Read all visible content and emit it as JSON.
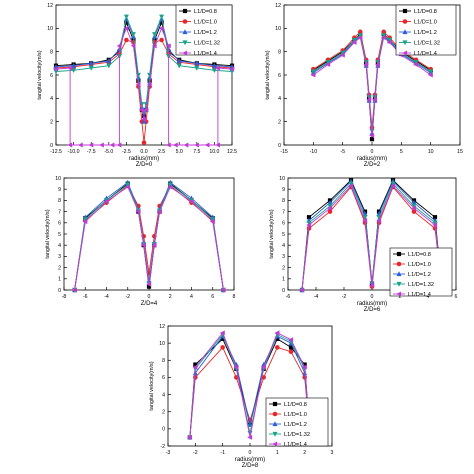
{
  "figure": {
    "legend_labels": [
      "L1/D=0.8",
      "L1/D=1.0",
      "L1/D=1.2",
      "L1/D=1.32",
      "L1/D=1.4"
    ],
    "series_colors": [
      "#000000",
      "#e8262a",
      "#2b5fd9",
      "#19a38a",
      "#c23ad6"
    ],
    "series_markers": [
      "square",
      "circle",
      "triangle-up",
      "triangle-down",
      "triangle-left"
    ]
  },
  "chart_data": [
    {
      "type": "line",
      "title": "Z/D=0",
      "xlabel": "radius(mm)",
      "ylabel": "tangital velocity(m/s)",
      "xlim": [
        -12.5,
        12.5
      ],
      "ylim": [
        0,
        12
      ],
      "xticks": [
        "-12.5",
        "-10.0",
        "-7.5",
        "-5.0",
        "-2.5",
        "0.0",
        "2.5",
        "5.0",
        "7.5",
        "10.0",
        "12.5"
      ],
      "yticks": [
        "0",
        "2",
        "4",
        "6",
        "8",
        "10",
        "12"
      ],
      "legend_position": "top-right",
      "series": [
        {
          "name": "L1/D=0.8",
          "x": [
            -12.5,
            -10,
            -7.5,
            -5,
            -3.5,
            -2.5,
            -1.5,
            -0.8,
            -0.3,
            0,
            0.3,
            0.8,
            1.5,
            2.5,
            3.5,
            5,
            7.5,
            10,
            12.5
          ],
          "y": [
            6.8,
            6.9,
            7.0,
            7.3,
            8.0,
            10.5,
            9.0,
            5.5,
            3.0,
            2.5,
            3.0,
            5.5,
            9.0,
            10.5,
            8.0,
            7.3,
            7.0,
            6.9,
            6.8
          ]
        },
        {
          "name": "L1/D=1.0",
          "x": [
            -12.5,
            -10,
            -7.5,
            -5,
            -3.5,
            -2.5,
            -1.5,
            -0.8,
            -0.3,
            0,
            0.3,
            0.8,
            1.5,
            2.5,
            3.5,
            5,
            7.5,
            10,
            12.5
          ],
          "y": [
            6.6,
            6.7,
            6.9,
            7.1,
            7.8,
            9.0,
            8.8,
            5.0,
            2.0,
            0.2,
            2.0,
            5.0,
            8.8,
            9.0,
            7.8,
            7.1,
            6.9,
            6.7,
            6.6
          ]
        },
        {
          "name": "L1/D=1.2",
          "x": [
            -12.5,
            -10,
            -7.5,
            -5,
            -3.5,
            -2.5,
            -1.5,
            -0.8,
            -0.3,
            0,
            0.3,
            0.8,
            1.5,
            2.5,
            3.5,
            5,
            7.5,
            10,
            12.5
          ],
          "y": [
            6.7,
            6.8,
            7.0,
            7.2,
            8.2,
            10.8,
            9.3,
            5.8,
            3.2,
            2.0,
            3.2,
            5.8,
            9.3,
            10.8,
            8.2,
            7.2,
            7.0,
            6.8,
            6.7
          ]
        },
        {
          "name": "L1/D=1.32",
          "x": [
            -12.5,
            -10,
            -7.5,
            -5,
            -3.5,
            -2.5,
            -1.5,
            -0.8,
            -0.3,
            0,
            0.3,
            0.8,
            1.5,
            2.5,
            3.5,
            5,
            7.5,
            10,
            12.5
          ],
          "y": [
            6.3,
            6.4,
            6.6,
            6.8,
            7.6,
            11.0,
            9.5,
            6.0,
            3.5,
            2.8,
            3.5,
            6.0,
            9.5,
            11.0,
            7.6,
            6.8,
            6.6,
            6.4,
            6.3
          ]
        },
        {
          "name": "L1/D=1.4",
          "x": [
            -12.5,
            -10.5,
            -10.5,
            -9,
            -7.5,
            -6,
            -4.5,
            -3.5,
            -3.5,
            -2.5,
            -1.5,
            -0.8,
            -0.3,
            0,
            0.3,
            0.8,
            1.5,
            2.5,
            3.5,
            3.5,
            4.5,
            6,
            7.5,
            9,
            10.5,
            10.5,
            12.5
          ],
          "y": [
            6.5,
            6.6,
            0.0,
            0.0,
            0.0,
            0.0,
            0.0,
            0.0,
            8.5,
            10.0,
            8.5,
            5.2,
            3.0,
            2.2,
            3.0,
            5.2,
            8.5,
            10.0,
            8.5,
            0.0,
            0.0,
            0.0,
            0.0,
            0.0,
            0.0,
            6.6,
            6.5
          ]
        }
      ]
    },
    {
      "type": "line",
      "title": "Z/D=2",
      "xlabel": "radius(mm)",
      "ylabel": "tangital velocity(m/s)",
      "xlim": [
        -15,
        15
      ],
      "ylim": [
        0,
        12
      ],
      "xticks": [
        "-15",
        "-10",
        "-5",
        "0",
        "5",
        "10",
        "15"
      ],
      "yticks": [
        "0",
        "2",
        "4",
        "6",
        "8",
        "10",
        "12"
      ],
      "legend_position": "top-right",
      "series": [
        {
          "name": "L1/D=0.8",
          "x": [
            -10,
            -7.5,
            -5,
            -3,
            -2,
            -1,
            -0.5,
            0,
            0.5,
            1,
            2,
            3,
            5,
            7.5,
            10
          ],
          "y": [
            6.4,
            7.2,
            8.0,
            9.0,
            9.5,
            7.0,
            4.0,
            0.5,
            4.0,
            7.0,
            9.5,
            9.0,
            8.0,
            7.2,
            6.4
          ]
        },
        {
          "name": "L1/D=1.0",
          "x": [
            -10,
            -7.5,
            -5,
            -3,
            -2,
            -1,
            -0.5,
            0,
            0.5,
            1,
            2,
            3,
            5,
            7.5,
            10
          ],
          "y": [
            6.5,
            7.3,
            8.1,
            9.2,
            9.7,
            7.3,
            4.3,
            1.5,
            4.3,
            7.3,
            9.7,
            9.2,
            8.1,
            7.3,
            6.5
          ]
        },
        {
          "name": "L1/D=1.2",
          "x": [
            -10,
            -7.5,
            -5,
            -3,
            -2,
            -1,
            -0.5,
            0,
            0.5,
            1,
            2,
            3,
            5,
            7.5,
            10
          ],
          "y": [
            6.2,
            7.0,
            7.8,
            8.9,
            9.3,
            6.8,
            3.8,
            1.0,
            3.8,
            6.8,
            9.3,
            8.9,
            7.8,
            7.0,
            6.2
          ]
        },
        {
          "name": "L1/D=1.32",
          "x": [
            -10,
            -7.5,
            -5,
            -3,
            -2,
            -1,
            -0.5,
            0,
            0.5,
            1,
            2,
            3,
            5,
            7.5,
            10
          ],
          "y": [
            6.3,
            7.1,
            7.9,
            9.0,
            9.4,
            7.1,
            4.1,
            1.2,
            4.1,
            7.1,
            9.4,
            9.0,
            7.9,
            7.1,
            6.3
          ]
        },
        {
          "name": "L1/D=1.4",
          "x": [
            -10,
            -7.5,
            -5,
            -3,
            -2,
            -1,
            -0.5,
            0,
            0.5,
            1,
            2,
            3,
            5,
            7.5,
            10
          ],
          "y": [
            6.0,
            6.9,
            7.7,
            8.8,
            9.2,
            6.9,
            3.9,
            0.8,
            3.9,
            6.9,
            9.2,
            8.8,
            7.7,
            6.9,
            6.0
          ]
        }
      ]
    },
    {
      "type": "line",
      "title": "Z/D=4",
      "xlabel": "",
      "ylabel": "tangital velocity(m/s)",
      "xlim": [
        -8,
        8
      ],
      "ylim": [
        0,
        10
      ],
      "xticks": [
        "-8",
        "-6",
        "-4",
        "-2",
        "0",
        "2",
        "4",
        "6",
        "8"
      ],
      "yticks": [
        "0",
        "1",
        "2",
        "3",
        "4",
        "5",
        "6",
        "7",
        "8",
        "9",
        "10"
      ],
      "legend_position": "none",
      "series": [
        {
          "name": "L1/D=0.8",
          "x": [
            -7,
            -6,
            -4,
            -2,
            -1,
            -0.5,
            0,
            0.5,
            1,
            2,
            4,
            6,
            7
          ],
          "y": [
            0,
            6.4,
            8.0,
            9.5,
            7.0,
            4.0,
            0.3,
            4.0,
            7.0,
            9.5,
            8.0,
            6.4,
            0
          ]
        },
        {
          "name": "L1/D=1.0",
          "x": [
            -7,
            -6,
            -4,
            -2,
            -1,
            -0.5,
            0,
            0.5,
            1,
            2,
            4,
            6,
            7
          ],
          "y": [
            0,
            6.2,
            7.8,
            9.3,
            7.5,
            4.8,
            1.5,
            4.8,
            7.5,
            9.3,
            7.8,
            6.2,
            0
          ]
        },
        {
          "name": "L1/D=1.2",
          "x": [
            -7,
            -6,
            -4,
            -2,
            -1,
            -0.5,
            0,
            0.5,
            1,
            2,
            4,
            6,
            7
          ],
          "y": [
            0,
            6.5,
            8.2,
            9.6,
            7.2,
            4.2,
            0.8,
            4.2,
            7.2,
            9.6,
            8.2,
            6.5,
            0
          ]
        },
        {
          "name": "L1/D=1.32",
          "x": [
            -7,
            -6,
            -4,
            -2,
            -1,
            -0.5,
            0,
            0.5,
            1,
            2,
            4,
            6,
            7
          ],
          "y": [
            0,
            6.3,
            8.0,
            9.4,
            7.1,
            4.1,
            0.6,
            4.1,
            7.1,
            9.4,
            8.0,
            6.3,
            0
          ]
        },
        {
          "name": "L1/D=1.4",
          "x": [
            -7,
            -6,
            -4,
            -2,
            -1,
            -0.5,
            0,
            0.5,
            1,
            2,
            4,
            6,
            7
          ],
          "y": [
            0,
            6.1,
            7.9,
            9.2,
            7.0,
            4.0,
            0.5,
            4.0,
            7.0,
            9.2,
            7.9,
            6.1,
            0
          ]
        }
      ]
    },
    {
      "type": "line",
      "title": "Z/D=6",
      "xlabel": "radius(mm)",
      "ylabel": "tangital velocity(m/s)",
      "xlim": [
        -6,
        6
      ],
      "ylim": [
        0,
        10
      ],
      "xticks": [
        "-6",
        "-4",
        "-2",
        "0",
        "2",
        "4",
        "6"
      ],
      "yticks": [
        "0",
        "1",
        "2",
        "3",
        "4",
        "5",
        "6",
        "7",
        "8",
        "9",
        "10"
      ],
      "legend_position": "bottom-right",
      "series": [
        {
          "name": "L1/D=0.8",
          "x": [
            -5,
            -4.5,
            -3,
            -1.5,
            -0.5,
            0,
            0.5,
            1.5,
            3,
            4.5,
            5
          ],
          "y": [
            0,
            6.5,
            8.0,
            9.8,
            7.0,
            0.5,
            7.0,
            9.8,
            8.0,
            6.5,
            0
          ]
        },
        {
          "name": "L1/D=1.0",
          "x": [
            -5,
            -4.5,
            -3,
            -1.5,
            -0.5,
            0,
            0.5,
            1.5,
            3,
            4.5,
            5
          ],
          "y": [
            0,
            5.5,
            7.0,
            9.2,
            6.0,
            0.3,
            6.0,
            9.2,
            7.0,
            5.5,
            0
          ]
        },
        {
          "name": "L1/D=1.2",
          "x": [
            -5,
            -4.5,
            -3,
            -1.5,
            -0.5,
            0,
            0.5,
            1.5,
            3,
            4.5,
            5
          ],
          "y": [
            0,
            6.2,
            7.8,
            9.7,
            6.8,
            0.7,
            6.8,
            9.7,
            7.8,
            6.2,
            0
          ]
        },
        {
          "name": "L1/D=1.32",
          "x": [
            -5,
            -4.5,
            -3,
            -1.5,
            -0.5,
            0,
            0.5,
            1.5,
            3,
            4.5,
            5
          ],
          "y": [
            0,
            6.0,
            7.5,
            9.5,
            6.5,
            0.6,
            6.5,
            9.5,
            7.5,
            6.0,
            0
          ]
        },
        {
          "name": "L1/D=1.4",
          "x": [
            -5,
            -4.5,
            -3,
            -1.5,
            -0.5,
            0,
            0.5,
            1.5,
            3,
            4.5,
            5
          ],
          "y": [
            0,
            5.8,
            7.3,
            9.3,
            6.2,
            0.4,
            6.2,
            9.3,
            7.3,
            5.8,
            0
          ]
        }
      ]
    },
    {
      "type": "line",
      "title": "Z/D=8",
      "xlabel": "radius(mm)",
      "ylabel": "tangital velocity(m/s)",
      "xlim": [
        -3,
        3
      ],
      "ylim": [
        -2,
        12
      ],
      "xticks": [
        "-3",
        "-2",
        "-1",
        "0",
        "1",
        "2",
        "3"
      ],
      "yticks": [
        "-2",
        "0",
        "2",
        "4",
        "6",
        "8",
        "10",
        "12"
      ],
      "legend_position": "bottom-right",
      "series": [
        {
          "name": "L1/D=0.8",
          "x": [
            -2.2,
            -2.0,
            -1.0,
            -0.5,
            0,
            0.5,
            1.0,
            1.5,
            2.0,
            2.2
          ],
          "y": [
            -1,
            7.5,
            10.5,
            7.0,
            0.5,
            7.0,
            10.5,
            9.5,
            7.5,
            -1
          ]
        },
        {
          "name": "L1/D=1.0",
          "x": [
            -2.2,
            -2.0,
            -1.0,
            -0.5,
            0,
            0.5,
            1.0,
            1.5,
            2.0,
            2.2
          ],
          "y": [
            -1,
            6.0,
            9.5,
            6.0,
            1.0,
            6.0,
            9.5,
            9.0,
            6.0,
            -1
          ]
        },
        {
          "name": "L1/D=1.2",
          "x": [
            -2.2,
            -2.0,
            -1.0,
            -0.5,
            0,
            0.5,
            1.0,
            1.5,
            2.0,
            2.2
          ],
          "y": [
            -1,
            6.5,
            10.8,
            7.5,
            0.5,
            7.5,
            10.8,
            10.0,
            6.5,
            -1
          ]
        },
        {
          "name": "L1/D=1.32",
          "x": [
            -2.2,
            -2.0,
            -1.0,
            -0.5,
            0,
            0.5,
            1.0,
            1.5,
            2.0,
            2.2
          ],
          "y": [
            -1,
            7.0,
            11.0,
            7.0,
            -0.5,
            7.0,
            11.0,
            10.2,
            7.0,
            -1
          ]
        },
        {
          "name": "L1/D=1.4",
          "x": [
            -2.2,
            -2.0,
            -1.0,
            -0.5,
            0,
            0.5,
            1.0,
            1.5,
            2.0,
            2.2
          ],
          "y": [
            -1,
            7.2,
            11.2,
            7.2,
            -1.0,
            7.2,
            11.2,
            10.4,
            7.2,
            -1
          ]
        }
      ]
    }
  ]
}
